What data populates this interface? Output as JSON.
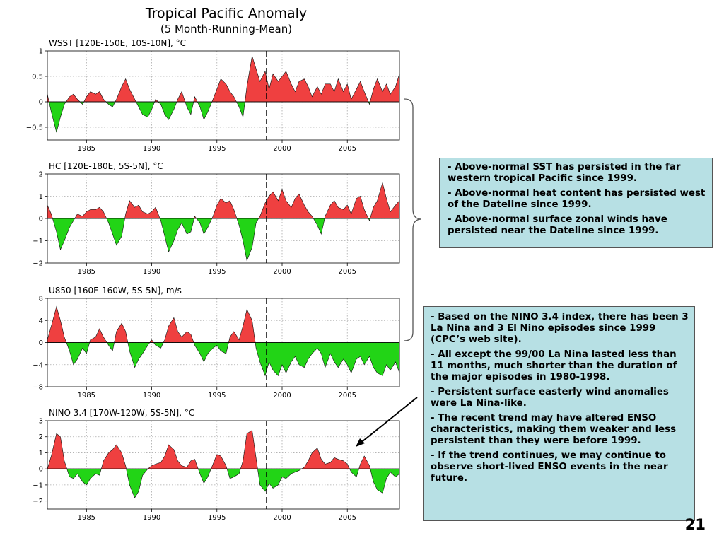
{
  "title": "Tropical Pacific Anomaly",
  "subtitle": "(5 Month-Running-Mean)",
  "colors": {
    "positive": "#ef4040",
    "negative": "#22d416",
    "box_bg": "#b7e0e4"
  },
  "chart_data": [
    {
      "type": "area",
      "label": "WSST [120E-150E, 10S-10N], °C",
      "ylim": [
        -0.75,
        1
      ],
      "yticks": [
        -0.5,
        0,
        0.5,
        1
      ],
      "ytick_labels": [
        "−0.5",
        "0",
        "0.5",
        "1"
      ],
      "xlim": [
        1982,
        2009
      ],
      "xticks": [
        1985,
        1990,
        1995,
        2000,
        2005
      ],
      "marker_year": 1998.8,
      "grid": true,
      "series": {
        "x": [
          1982.0,
          1982.3,
          1982.7,
          1983.0,
          1983.3,
          1983.7,
          1984.0,
          1984.3,
          1984.7,
          1985.0,
          1985.3,
          1985.7,
          1986.0,
          1986.3,
          1986.7,
          1987.0,
          1987.3,
          1987.7,
          1988.0,
          1988.3,
          1988.7,
          1989.0,
          1989.3,
          1989.7,
          1990.0,
          1990.3,
          1990.7,
          1991.0,
          1991.3,
          1991.7,
          1992.0,
          1992.3,
          1992.7,
          1993.0,
          1993.3,
          1993.7,
          1994.0,
          1994.3,
          1994.7,
          1995.0,
          1995.3,
          1995.7,
          1996.0,
          1996.3,
          1996.7,
          1997.0,
          1997.3,
          1997.7,
          1998.0,
          1998.3,
          1998.7,
          1999.0,
          1999.3,
          1999.7,
          2000.0,
          2000.3,
          2000.7,
          2001.0,
          2001.3,
          2001.7,
          2002.0,
          2002.3,
          2002.7,
          2003.0,
          2003.3,
          2003.7,
          2004.0,
          2004.3,
          2004.7,
          2005.0,
          2005.3,
          2005.7,
          2006.0,
          2006.3,
          2006.7,
          2007.0,
          2007.3,
          2007.7,
          2008.0,
          2008.3,
          2008.7,
          2009.0
        ],
        "y": [
          0.15,
          -0.2,
          -0.6,
          -0.3,
          -0.05,
          0.1,
          0.15,
          0.05,
          -0.05,
          0.1,
          0.2,
          0.15,
          0.2,
          0.05,
          -0.05,
          -0.1,
          0.05,
          0.3,
          0.45,
          0.25,
          0.05,
          -0.1,
          -0.25,
          -0.3,
          -0.15,
          0.05,
          -0.05,
          -0.25,
          -0.35,
          -0.15,
          0.05,
          0.2,
          -0.1,
          -0.25,
          0.1,
          -0.1,
          -0.35,
          -0.2,
          0.05,
          0.25,
          0.45,
          0.35,
          0.2,
          0.1,
          -0.1,
          -0.3,
          0.3,
          0.9,
          0.65,
          0.4,
          0.6,
          0.25,
          0.55,
          0.4,
          0.5,
          0.6,
          0.35,
          0.2,
          0.4,
          0.45,
          0.3,
          0.1,
          0.3,
          0.15,
          0.35,
          0.35,
          0.2,
          0.45,
          0.2,
          0.35,
          0.05,
          0.25,
          0.4,
          0.2,
          -0.05,
          0.25,
          0.45,
          0.2,
          0.35,
          0.15,
          0.3,
          0.55
        ]
      }
    },
    {
      "type": "area",
      "label": "HC [120E-180E, 5S-5N], °C",
      "ylim": [
        -2,
        2
      ],
      "yticks": [
        -2,
        -1,
        0,
        1,
        2
      ],
      "ytick_labels": [
        "−2",
        "−1",
        "0",
        "1",
        "2"
      ],
      "xlim": [
        1982,
        2009
      ],
      "xticks": [
        1985,
        1990,
        1995,
        2000,
        2005
      ],
      "marker_year": 1998.8,
      "grid": true,
      "series": {
        "x": [
          1982.0,
          1982.3,
          1982.7,
          1983.0,
          1983.3,
          1983.7,
          1984.0,
          1984.3,
          1984.7,
          1985.0,
          1985.3,
          1985.7,
          1986.0,
          1986.3,
          1986.7,
          1987.0,
          1987.3,
          1987.7,
          1988.0,
          1988.3,
          1988.7,
          1989.0,
          1989.3,
          1989.7,
          1990.0,
          1990.3,
          1990.7,
          1991.0,
          1991.3,
          1991.7,
          1992.0,
          1992.3,
          1992.7,
          1993.0,
          1993.3,
          1993.7,
          1994.0,
          1994.3,
          1994.7,
          1995.0,
          1995.3,
          1995.7,
          1996.0,
          1996.3,
          1996.7,
          1997.0,
          1997.3,
          1997.7,
          1998.0,
          1998.3,
          1998.7,
          1999.0,
          1999.3,
          1999.7,
          2000.0,
          2000.3,
          2000.7,
          2001.0,
          2001.3,
          2001.7,
          2002.0,
          2002.3,
          2002.7,
          2003.0,
          2003.3,
          2003.7,
          2004.0,
          2004.3,
          2004.7,
          2005.0,
          2005.3,
          2005.7,
          2006.0,
          2006.3,
          2006.7,
          2007.0,
          2007.3,
          2007.7,
          2008.0,
          2008.3,
          2008.7,
          2009.0
        ],
        "y": [
          0.6,
          0.2,
          -0.6,
          -1.4,
          -1.0,
          -0.4,
          -0.1,
          0.2,
          0.1,
          0.3,
          0.4,
          0.4,
          0.5,
          0.3,
          -0.2,
          -0.7,
          -1.2,
          -0.8,
          0.2,
          0.8,
          0.5,
          0.6,
          0.3,
          0.2,
          0.3,
          0.5,
          -0.1,
          -0.8,
          -1.5,
          -1.0,
          -0.5,
          -0.2,
          -0.7,
          -0.6,
          0.1,
          -0.2,
          -0.7,
          -0.4,
          0.1,
          0.6,
          0.9,
          0.7,
          0.8,
          0.4,
          -0.3,
          -1.0,
          -1.9,
          -1.3,
          -0.2,
          0.1,
          0.7,
          1.0,
          1.2,
          0.8,
          1.3,
          0.8,
          0.5,
          0.9,
          1.1,
          0.6,
          0.3,
          0.1,
          -0.3,
          -0.7,
          0.1,
          0.6,
          0.8,
          0.5,
          0.4,
          0.6,
          0.2,
          0.9,
          1.0,
          0.4,
          -0.1,
          0.5,
          0.8,
          1.6,
          0.9,
          0.3,
          0.6,
          0.8
        ]
      }
    },
    {
      "type": "area",
      "label": "U850 [160E-160W, 5S-5N], m/s",
      "ylim": [
        -8,
        8
      ],
      "yticks": [
        -8,
        -4,
        0,
        4,
        8
      ],
      "ytick_labels": [
        "−8",
        "−4",
        "0",
        "4",
        "8"
      ],
      "xlim": [
        1982,
        2009
      ],
      "xticks": [
        1985,
        1990,
        1995,
        2000,
        2005
      ],
      "marker_year": 1998.8,
      "grid": true,
      "series": {
        "x": [
          1982.0,
          1982.3,
          1982.7,
          1983.0,
          1983.3,
          1983.7,
          1984.0,
          1984.3,
          1984.7,
          1985.0,
          1985.3,
          1985.7,
          1986.0,
          1986.3,
          1986.7,
          1987.0,
          1987.3,
          1987.7,
          1988.0,
          1988.3,
          1988.7,
          1989.0,
          1989.3,
          1989.7,
          1990.0,
          1990.3,
          1990.7,
          1991.0,
          1991.3,
          1991.7,
          1992.0,
          1992.3,
          1992.7,
          1993.0,
          1993.3,
          1993.7,
          1994.0,
          1994.3,
          1994.7,
          1995.0,
          1995.3,
          1995.7,
          1996.0,
          1996.3,
          1996.7,
          1997.0,
          1997.3,
          1997.7,
          1998.0,
          1998.3,
          1998.7,
          1999.0,
          1999.3,
          1999.7,
          2000.0,
          2000.3,
          2000.7,
          2001.0,
          2001.3,
          2001.7,
          2002.0,
          2002.3,
          2002.7,
          2003.0,
          2003.3,
          2003.7,
          2004.0,
          2004.3,
          2004.7,
          2005.0,
          2005.3,
          2005.7,
          2006.0,
          2006.3,
          2006.7,
          2007.0,
          2007.3,
          2007.7,
          2008.0,
          2008.3,
          2008.7,
          2009.0
        ],
        "y": [
          0.5,
          3.0,
          6.5,
          4.0,
          1.0,
          -1.5,
          -4.0,
          -3.0,
          -1.0,
          -2.0,
          0.5,
          1.0,
          2.5,
          1.0,
          -0.5,
          -1.5,
          2.0,
          3.5,
          2.0,
          -1.5,
          -4.5,
          -3.0,
          -2.0,
          -0.5,
          0.5,
          -0.5,
          -1.0,
          0.5,
          3.0,
          4.5,
          2.0,
          1.0,
          2.0,
          1.5,
          -0.5,
          -2.0,
          -3.5,
          -2.0,
          -1.0,
          -0.5,
          -1.5,
          -2.0,
          1.0,
          2.0,
          0.5,
          3.0,
          6.0,
          4.0,
          -1.0,
          -3.5,
          -6.0,
          -3.5,
          -5.0,
          -6.0,
          -4.0,
          -5.5,
          -3.5,
          -2.5,
          -4.0,
          -4.5,
          -3.0,
          -2.0,
          -1.0,
          -2.0,
          -4.5,
          -2.0,
          -3.5,
          -4.5,
          -3.0,
          -4.0,
          -5.5,
          -3.0,
          -2.5,
          -4.0,
          -2.5,
          -4.5,
          -5.5,
          -6.0,
          -4.0,
          -5.0,
          -3.5,
          -5.5
        ]
      }
    },
    {
      "type": "area",
      "label": "NINO 3.4 [170W-120W, 5S-5N], °C",
      "ylim": [
        -2.5,
        3
      ],
      "yticks": [
        -2,
        -1,
        0,
        1,
        2,
        3
      ],
      "ytick_labels": [
        "−2",
        "−1",
        "0",
        "1",
        "2",
        "3"
      ],
      "xlim": [
        1982,
        2009
      ],
      "xticks": [
        1985,
        1990,
        1995,
        2000,
        2005
      ],
      "marker_year": 1998.8,
      "grid": true,
      "series": {
        "x": [
          1982.0,
          1982.3,
          1982.7,
          1983.0,
          1983.3,
          1983.7,
          1984.0,
          1984.3,
          1984.7,
          1985.0,
          1985.3,
          1985.7,
          1986.0,
          1986.3,
          1986.7,
          1987.0,
          1987.3,
          1987.7,
          1988.0,
          1988.3,
          1988.7,
          1989.0,
          1989.3,
          1989.7,
          1990.0,
          1990.3,
          1990.7,
          1991.0,
          1991.3,
          1991.7,
          1992.0,
          1992.3,
          1992.7,
          1993.0,
          1993.3,
          1993.7,
          1994.0,
          1994.3,
          1994.7,
          1995.0,
          1995.3,
          1995.7,
          1996.0,
          1996.3,
          1996.7,
          1997.0,
          1997.3,
          1997.7,
          1998.0,
          1998.3,
          1998.7,
          1999.0,
          1999.3,
          1999.7,
          2000.0,
          2000.3,
          2000.7,
          2001.0,
          2001.3,
          2001.7,
          2002.0,
          2002.3,
          2002.7,
          2003.0,
          2003.3,
          2003.7,
          2004.0,
          2004.3,
          2004.7,
          2005.0,
          2005.3,
          2005.7,
          2006.0,
          2006.3,
          2006.7,
          2007.0,
          2007.3,
          2007.7,
          2008.0,
          2008.3,
          2008.7,
          2009.0
        ],
        "y": [
          0.0,
          0.8,
          2.2,
          2.0,
          0.5,
          -0.5,
          -0.6,
          -0.3,
          -0.8,
          -1.0,
          -0.6,
          -0.3,
          -0.4,
          0.5,
          1.0,
          1.2,
          1.5,
          1.0,
          0.2,
          -1.0,
          -1.8,
          -1.4,
          -0.4,
          0.0,
          0.2,
          0.3,
          0.4,
          0.8,
          1.5,
          1.2,
          0.5,
          0.2,
          0.1,
          0.5,
          0.6,
          -0.3,
          -0.9,
          -0.5,
          0.3,
          0.9,
          0.8,
          0.2,
          -0.6,
          -0.5,
          -0.3,
          0.5,
          2.2,
          2.4,
          0.7,
          -1.0,
          -1.4,
          -0.9,
          -1.2,
          -1.0,
          -0.5,
          -0.6,
          -0.3,
          -0.2,
          -0.1,
          0.1,
          0.5,
          1.0,
          1.3,
          0.6,
          0.3,
          0.4,
          0.7,
          0.6,
          0.5,
          0.3,
          -0.2,
          -0.5,
          0.3,
          0.8,
          0.2,
          -0.8,
          -1.3,
          -1.5,
          -0.6,
          -0.2,
          -0.5,
          -0.3
        ]
      }
    }
  ],
  "box1": {
    "items": [
      "-  Above-normal SST has persisted in the far western tropical Pacific since 1999.",
      "- Above-normal heat content has persisted west of the Dateline since 1999.",
      "- Above-normal surface zonal winds have persisted near the Dateline since 1999."
    ]
  },
  "box2": {
    "items": [
      "- Based on the NINO 3.4 index, there has been 3 La Nina and 3 El Nino episodes since 1999 (CPC’s web site).",
      "- All except the 99/00 La Nina lasted less than 11 months, much shorter than the duration of the major episodes in 1980-1998.",
      "- Persistent surface easterly wind anomalies were La Nina-like.",
      "- The recent trend may have altered ENSO characteristics, making them weaker and less persistent than they were before 1999.",
      "- If the trend continues, we may continue to observe short-lived ENSO events in the near future."
    ]
  },
  "page_number": "21"
}
